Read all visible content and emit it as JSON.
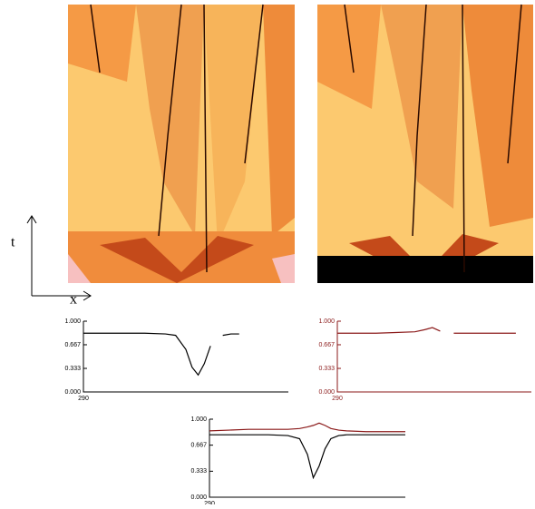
{
  "axis_labels": {
    "t": "t",
    "x": "x"
  },
  "chart_data": [
    {
      "type": "line",
      "axis_color": "#000000",
      "x": [
        290,
        300,
        310,
        320,
        330,
        335,
        340,
        343,
        346,
        349,
        352,
        355,
        358,
        362,
        366
      ],
      "series": [
        {
          "color": "#000000",
          "values": [
            0.83,
            0.83,
            0.83,
            0.83,
            0.82,
            0.8,
            0.6,
            0.35,
            0.24,
            0.4,
            0.65,
            null,
            0.8,
            0.82,
            0.82
          ]
        }
      ],
      "xlim": [
        290,
        390
      ],
      "xticks": [
        290
      ],
      "ylim": [
        0,
        1
      ],
      "yticks": [
        {
          "value": 0,
          "label": "0.000"
        },
        0.333,
        0.667,
        {
          "value": 1,
          "label": "1.000"
        }
      ]
    },
    {
      "type": "line",
      "axis_color": "#8b1a1a",
      "x": [
        290,
        300,
        310,
        320,
        330,
        335,
        339,
        343,
        346,
        350,
        360,
        370,
        382
      ],
      "series": [
        {
          "color": "#8b1a1a",
          "values": [
            0.83,
            0.83,
            0.83,
            0.84,
            0.85,
            0.88,
            0.91,
            0.86,
            null,
            0.83,
            0.83,
            0.83,
            0.83
          ]
        }
      ],
      "xlim": [
        290,
        390
      ],
      "xticks": [
        290
      ],
      "ylim": [
        0,
        1
      ],
      "yticks": [
        {
          "value": 0,
          "label": "0.000"
        },
        0.333,
        0.667,
        {
          "value": 1,
          "label": "1.000"
        }
      ]
    },
    {
      "type": "line",
      "axis_color": "#000000",
      "x": [
        290,
        300,
        310,
        320,
        330,
        336,
        340,
        343,
        346,
        349,
        352,
        356,
        360,
        370,
        380,
        390
      ],
      "series": [
        {
          "color": "#000000",
          "values": [
            0.8,
            0.8,
            0.8,
            0.8,
            0.79,
            0.75,
            0.55,
            0.25,
            0.4,
            0.62,
            0.75,
            0.79,
            0.8,
            0.8,
            0.8,
            0.8
          ]
        },
        {
          "color": "#8b1a1a",
          "values": [
            0.85,
            0.86,
            0.87,
            0.87,
            0.87,
            0.88,
            0.9,
            0.92,
            0.95,
            0.92,
            0.88,
            0.86,
            0.85,
            0.84,
            0.84,
            0.84
          ]
        }
      ],
      "xlim": [
        290,
        390
      ],
      "xticks": [
        290
      ],
      "ylim": [
        0,
        1
      ],
      "yticks": [
        {
          "value": 0,
          "label": "0.000"
        },
        0.333,
        0.667,
        {
          "value": 1,
          "label": "1.000"
        }
      ]
    }
  ]
}
